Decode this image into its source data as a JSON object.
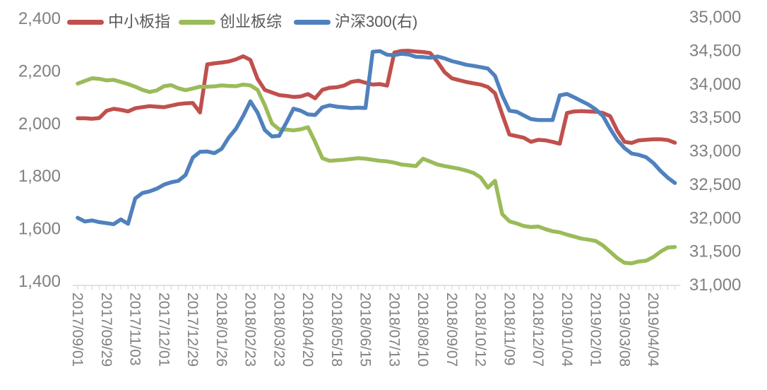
{
  "colors": {
    "series_red": "#C0504D",
    "series_green": "#9BBB59",
    "series_blue": "#4F81BD",
    "axis_text": "#808080",
    "legend_text": "#595959",
    "axis_line": "#D9D9D9",
    "background": "#FFFFFF"
  },
  "chart_data": {
    "type": "line",
    "title": "",
    "xlabel": "",
    "ylabel_left": "",
    "ylabel_right": "",
    "grid": false,
    "legend_position": "top",
    "points_per_series": 84,
    "x_label_interval": 4,
    "x_tick_labels": [
      "2017/09/01",
      "2017/09/29",
      "2017/11/03",
      "2017/12/01",
      "2017/12/29",
      "2018/01/26",
      "2018/02/23",
      "2018/03/23",
      "2018/04/20",
      "2018/05/18",
      "2018/06/15",
      "2018/07/13",
      "2018/08/10",
      "2018/09/07",
      "2018/10/12",
      "2018/11/09",
      "2018/12/07",
      "2019/01/04",
      "2019/02/01",
      "2019/03/08",
      "2019/04/04"
    ],
    "left_axis": {
      "min": 1400,
      "max": 2400,
      "step": 200,
      "tick_values": [
        2400,
        2200,
        2000,
        1800,
        1600,
        1400
      ],
      "tick_labels": [
        "2,400",
        "2,200",
        "2,000",
        "1,800",
        "1,600",
        "1,400"
      ]
    },
    "right_axis": {
      "min": 31000,
      "max": 35000,
      "step": 500,
      "tick_values": [
        35000,
        34500,
        34000,
        33500,
        33000,
        32500,
        32000,
        31500,
        31000
      ],
      "tick_labels": [
        "35,000",
        "34,500",
        "34,000",
        "33,500",
        "33,000",
        "32,500",
        "32,000",
        "31,500",
        "31,000"
      ]
    },
    "series": [
      {
        "name": "中小板指",
        "axis": "left",
        "color": "#C0504D",
        "values": [
          2020,
          2020,
          2018,
          2021,
          2048,
          2056,
          2052,
          2046,
          2058,
          2062,
          2066,
          2064,
          2062,
          2068,
          2074,
          2077,
          2078,
          2042,
          2225,
          2229,
          2232,
          2236,
          2244,
          2256,
          2242,
          2170,
          2128,
          2118,
          2108,
          2105,
          2101,
          2103,
          2112,
          2096,
          2128,
          2136,
          2138,
          2144,
          2158,
          2163,
          2155,
          2148,
          2150,
          2144,
          2270,
          2276,
          2277,
          2274,
          2272,
          2268,
          2235,
          2195,
          2172,
          2165,
          2158,
          2153,
          2148,
          2139,
          2115,
          2035,
          1958,
          1952,
          1946,
          1930,
          1938,
          1936,
          1930,
          1923,
          2040,
          2046,
          2047,
          2046,
          2045,
          2040,
          2028,
          1972,
          1930,
          1926,
          1936,
          1938,
          1940,
          1940,
          1937,
          1927
        ]
      },
      {
        "name": "创业板综",
        "axis": "left",
        "color": "#9BBB59",
        "values": [
          2152,
          2162,
          2172,
          2170,
          2164,
          2166,
          2158,
          2150,
          2140,
          2128,
          2120,
          2126,
          2142,
          2146,
          2134,
          2127,
          2133,
          2140,
          2140,
          2141,
          2145,
          2143,
          2142,
          2148,
          2145,
          2128,
          2070,
          2000,
          1978,
          1977,
          1974,
          1978,
          1986,
          1930,
          1868,
          1858,
          1860,
          1862,
          1865,
          1868,
          1866,
          1862,
          1858,
          1856,
          1851,
          1844,
          1841,
          1838,
          1866,
          1855,
          1844,
          1838,
          1833,
          1828,
          1821,
          1812,
          1795,
          1756,
          1782,
          1655,
          1628,
          1620,
          1610,
          1606,
          1608,
          1598,
          1590,
          1586,
          1577,
          1570,
          1562,
          1558,
          1553,
          1536,
          1512,
          1488,
          1470,
          1468,
          1475,
          1478,
          1492,
          1512,
          1528,
          1530
        ]
      },
      {
        "name": "沪深300(右)",
        "axis": "right",
        "color": "#4F81BD",
        "values": [
          32000,
          31945,
          31960,
          31935,
          31920,
          31905,
          31975,
          31910,
          32290,
          32370,
          32395,
          32435,
          32495,
          32530,
          32552,
          32640,
          32900,
          32985,
          32990,
          32965,
          33030,
          33200,
          33330,
          33520,
          33740,
          33570,
          33310,
          33215,
          33225,
          33420,
          33630,
          33600,
          33545,
          33535,
          33650,
          33680,
          33660,
          33650,
          33640,
          33645,
          33640,
          34480,
          34490,
          34435,
          34430,
          34450,
          34440,
          34405,
          34400,
          34390,
          34410,
          34380,
          34340,
          34315,
          34285,
          34270,
          34250,
          34230,
          34120,
          33830,
          33600,
          33585,
          33530,
          33475,
          33460,
          33460,
          33460,
          33830,
          33850,
          33800,
          33745,
          33690,
          33620,
          33520,
          33330,
          33160,
          33040,
          32960,
          32940,
          32905,
          32820,
          32700,
          32600,
          32520
        ]
      }
    ]
  },
  "legend": {
    "items": [
      {
        "label": "中小板指",
        "color": "#C0504D"
      },
      {
        "label": "创业板综",
        "color": "#9BBB59"
      },
      {
        "label": "沪深300(右)",
        "color": "#4F81BD"
      }
    ]
  }
}
